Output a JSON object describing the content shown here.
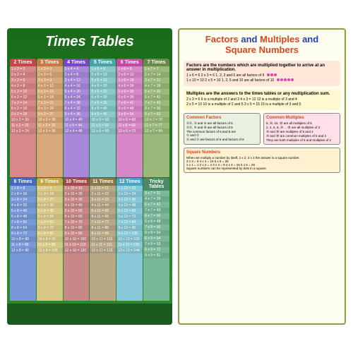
{
  "poster1": {
    "title": "Times Tables",
    "columns": [
      {
        "head": "2 Times",
        "hc": "#c44848",
        "bc": "#d88888",
        "rows": [
          "1 x 2 = 2",
          "2 x 2 = 4",
          "3 x 2 = 6",
          "4 x 2 = 8",
          "5 x 2 = 10",
          "6 x 2 = 12",
          "7 x 2 = 14",
          "8 x 2 = 16",
          "9 x 2 = 18",
          "10 x 2 = 20",
          "11 x 2 = 22",
          "12 x 2 = 24"
        ]
      },
      {
        "head": "3 Times",
        "hc": "#c47a48",
        "bc": "#d8a878",
        "rows": [
          "1 x 3 = 3",
          "2 x 3 = 6",
          "3 x 3 = 9",
          "4 x 3 = 12",
          "5 x 3 = 15",
          "6 x 3 = 18",
          "7 x 3 = 21",
          "8 x 3 = 24",
          "9 x 3 = 27",
          "10 x 3 = 30",
          "11 x 3 = 33",
          "12 x 3 = 36"
        ]
      },
      {
        "head": "4 Times",
        "hc": "#7a48c4",
        "bc": "#a888d8",
        "rows": [
          "1 x 4 = 4",
          "2 x 4 = 8",
          "3 x 4 = 12",
          "4 x 4 = 16",
          "5 x 4 = 20",
          "6 x 4 = 24",
          "7 x 4 = 28",
          "8 x 4 = 32",
          "9 x 4 = 36",
          "10 x 4 = 40",
          "11 x 4 = 44",
          "12 x 4 = 48"
        ]
      },
      {
        "head": "5 Times",
        "hc": "#48a4a4",
        "bc": "#88c8c8",
        "rows": [
          "1 x 5 = 5",
          "2 x 5 = 10",
          "3 x 5 = 15",
          "4 x 5 = 20",
          "5 x 5 = 25",
          "6 x 5 = 30",
          "7 x 5 = 35",
          "8 x 5 = 40",
          "9 x 5 = 45",
          "10 x 5 = 50",
          "11 x 5 = 55",
          "12 x 5 = 60"
        ]
      },
      {
        "head": "6 Times",
        "hc": "#c448a4",
        "bc": "#d888c8",
        "rows": [
          "1 x 6 = 6",
          "2 x 6 = 12",
          "3 x 6 = 18",
          "4 x 6 = 24",
          "5 x 6 = 30",
          "6 x 6 = 36",
          "7 x 6 = 42",
          "8 x 6 = 48",
          "9 x 6 = 54",
          "10 x 6 = 60",
          "11 x 6 = 66",
          "12 x 6 = 72"
        ]
      },
      {
        "head": "7 Times",
        "hc": "#6a8a4a",
        "bc": "#9ab87a",
        "rows": [
          "1 x 7 = 7",
          "2 x 7 = 14",
          "3 x 7 = 21",
          "4 x 7 = 28",
          "5 x 7 = 35",
          "6 x 7 = 42",
          "7 x 7 = 49",
          "8 x 7 = 56",
          "9 x 7 = 63",
          "10 x 7 = 70",
          "11 x 7 = 77",
          "12 x 7 = 84"
        ]
      },
      {
        "head": "8 Times",
        "hc": "#4868c4",
        "bc": "#7898d8",
        "rows": [
          "1 x 8 = 8",
          "2 x 8 = 16",
          "3 x 8 = 24",
          "4 x 8 = 32",
          "5 x 8 = 40",
          "6 x 8 = 48",
          "7 x 8 = 56",
          "8 x 8 = 64",
          "9 x 8 = 72",
          "10 x 8 = 80",
          "11 x 8 = 88",
          "12 x 8 = 96"
        ]
      },
      {
        "head": "9 Times",
        "hc": "#c4a848",
        "bc": "#d8c888",
        "rows": [
          "1 x 9 = 9",
          "2 x 9 = 18",
          "3 x 9 = 27",
          "4 x 9 = 36",
          "5 x 9 = 45",
          "6 x 9 = 54",
          "7 x 9 = 63",
          "8 x 9 = 72",
          "9 x 9 = 81",
          "10 x 9 = 90",
          "11 x 9 = 99",
          "12 x 9 = 108"
        ]
      },
      {
        "head": "10 Times",
        "hc": "#a44848",
        "bc": "#c88888",
        "rows": [
          "1 x 10 = 10",
          "2 x 10 = 20",
          "3 x 10 = 30",
          "4 x 10 = 40",
          "5 x 10 = 50",
          "6 x 10 = 60",
          "7 x 10 = 70",
          "8 x 10 = 80",
          "9 x 10 = 90",
          "10 x 10 = 100",
          "11 x 10 = 110",
          "12 x 10 = 120"
        ]
      },
      {
        "head": "11 Times",
        "hc": "#887848",
        "bc": "#b8a888",
        "rows": [
          "1 x 11 = 11",
          "2 x 11 = 22",
          "3 x 11 = 33",
          "4 x 11 = 44",
          "5 x 11 = 55",
          "6 x 11 = 66",
          "7 x 11 = 77",
          "8 x 11 = 88",
          "9 x 11 = 99",
          "10 x 11 = 110",
          "11 x 11 = 121",
          "12 x 11 = 132"
        ]
      },
      {
        "head": "12 Times",
        "hc": "#48a4c4",
        "bc": "#88c8d8",
        "rows": [
          "1 x 12 = 12",
          "2 x 12 = 24",
          "3 x 12 = 36",
          "4 x 12 = 48",
          "5 x 12 = 60",
          "6 x 12 = 72",
          "7 x 12 = 84",
          "8 x 12 = 96",
          "9 x 12 = 108",
          "10 x 12 = 120",
          "11 x 12 = 132",
          "12 x 12 = 144"
        ]
      },
      {
        "head": "Tricky Tables",
        "hc": "#4a8a6a",
        "bc": "#7ab89a",
        "rows": [
          "3 x 7 = 21",
          "4 x 7 = 28",
          "6 x 7 = 42",
          "7 x 7 = 49",
          "8 x 7 = 56",
          "6 x 8 = 48",
          "7 x 8 = 56",
          "8 x 8 = 64",
          "6 x 9 = 54",
          "7 x 9 = 63",
          "8 x 9 = 72",
          "9 x 9 = 81"
        ]
      }
    ]
  },
  "poster2": {
    "title_parts": {
      "a": "Factors",
      "b": " and ",
      "c": "Multiples",
      "d": " and",
      "e": "Square Numbers"
    },
    "factors": {
      "head": "Factors are the numbers which are multiplied together to arrive at an answer in multiplication.",
      "l1": "1 x 6 = 6   2 x 3 = 6   1, 2, 3 and 6 are all factors of 6",
      "l2": "1 x 10 = 10   2 x 5 = 10   1, 2, 5 and 10 are all factors of 10"
    },
    "multiples": {
      "head": "Multiples are the answers to the times tables or any multiplication sum.",
      "l1": "2 x 3 = 6   6 is a multiple of 2 and 3    4 x 3 = 12   12 is a multiple of 3 and 4",
      "l2": "2 x 5 = 10   10 is a multiple of 2 and 5    3 x 5 = 15   15 is a multiple of 3 and 5"
    },
    "cf": {
      "title": "Common Factors",
      "l1": "①②, ③ and ⑥ are all factors of 6",
      "l2": "①②, ④ and ⑧ are all factors of 8",
      "l3": "The common factors of 6 and 8 are",
      "l4": "① and ②",
      "l5": "① and ② are factors of 6 and factors of 8"
    },
    "cm": {
      "title": "Common Multiples",
      "l1": "5, ⑩, 15, ⑳ are all multiples of 5",
      "l2": "2, 4, 6, 8, ⑩ ... ⑳ are all multiples of 2",
      "l3": "⑩ and ⑳ are multiples of 5 and 2",
      "l4": "⑩ and ⑳ are common multiples of 5 and 2",
      "l5": "They are both multiples of 5 and multiples of 2"
    },
    "sq": {
      "title": "Square Numbers",
      "head": "When we multiply a number by itself, 2 x 2, 3 x 3 the answer is a square number.",
      "l1": "3 x 3 = 9   4 x 4 = 16   5 x 5 = 25",
      "l2": "1 x 1 = 1   2 x 2 = 4   3 x 3 = 9   4 x 4 = 16   5 x 5 = 25",
      "l3": "Square numbers can be represented by dots in a square."
    }
  }
}
